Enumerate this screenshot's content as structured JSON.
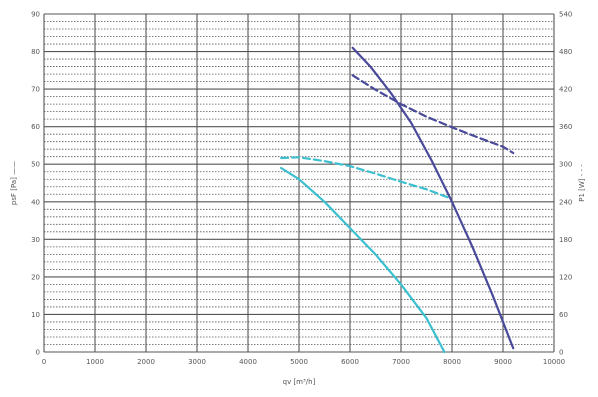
{
  "chart_data": {
    "type": "line",
    "xlabel": "qv [m³/h]",
    "ylabel_left": "psF [Pa] ——",
    "ylabel_right": "P1 [W] - - -",
    "xlim": [
      0,
      10000
    ],
    "ylim_left": [
      0,
      90
    ],
    "ylim_right": [
      0,
      540
    ],
    "x_ticks": [
      "0",
      "1000",
      "2000",
      "3000",
      "4000",
      "5000",
      "6000",
      "7000",
      "8000",
      "9000",
      "10000"
    ],
    "y_left_ticks": [
      "0",
      "10",
      "20",
      "30",
      "40",
      "50",
      "60",
      "70",
      "80",
      "90"
    ],
    "y_right_ticks": [
      "0",
      "60",
      "120",
      "180",
      "240",
      "300",
      "360",
      "420",
      "480",
      "540"
    ],
    "grid": true,
    "colors": {
      "dark": "#4a4a9a",
      "light": "#3cc0d0",
      "grid": "#555555"
    },
    "series": [
      {
        "axis": "left",
        "style": "solid",
        "color": "#4a4a9a",
        "x": [
          6050,
          6400,
          6800,
          7200,
          7600,
          8000,
          8400,
          8800,
          9200
        ],
        "y": [
          81,
          76,
          69,
          61,
          51,
          40,
          28,
          15,
          1
        ]
      },
      {
        "axis": "right",
        "style": "dashed",
        "color": "#4a4a9a",
        "x": [
          6050,
          6500,
          7000,
          7500,
          8000,
          8500,
          9000,
          9200
        ],
        "y": [
          442,
          419,
          396,
          376,
          359,
          343,
          328,
          318
        ]
      },
      {
        "axis": "left",
        "style": "solid",
        "color": "#3cc0d0",
        "x": [
          4650,
          5000,
          5500,
          6000,
          6500,
          7000,
          7500,
          7850
        ],
        "y": [
          49,
          46,
          40,
          33,
          26,
          18,
          9,
          0
        ]
      },
      {
        "axis": "right",
        "style": "dashed",
        "color": "#3cc0d0",
        "x": [
          4650,
          5000,
          5500,
          6000,
          6500,
          7000,
          7500,
          7950
        ],
        "y": [
          310,
          311,
          305,
          297,
          285,
          272,
          260,
          246
        ]
      }
    ]
  }
}
